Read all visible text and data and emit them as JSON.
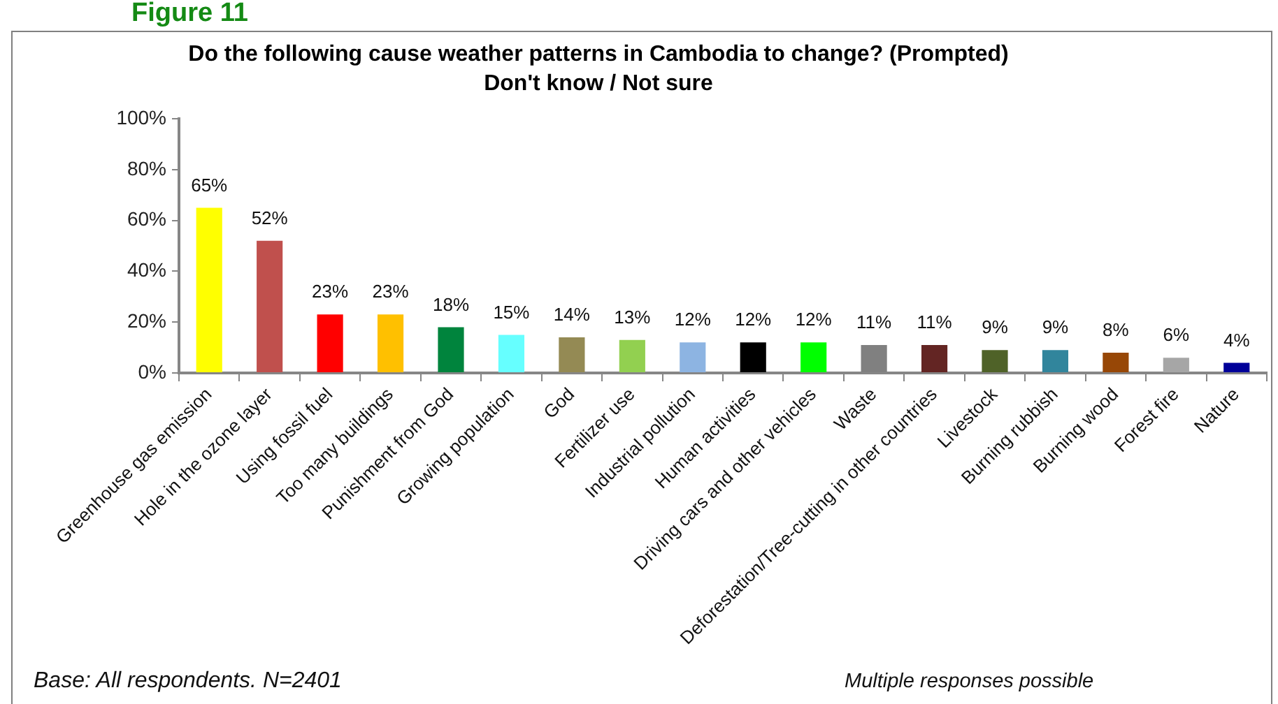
{
  "chart_data": {
    "type": "bar",
    "title": "Do the following cause weather patterns in Cambodia to change? (Prompted)",
    "subtitle": "Don't know / Not sure",
    "annotations": [
      "Figure 11",
      "Base: All respondents. N=2401",
      "Multiple responses possible"
    ],
    "categories": [
      "Greenhouse gas emission",
      "Hole in the ozone layer",
      "Using fossil fuel",
      "Too many buildings",
      "Punishment from God",
      "Growing population",
      "God",
      "Fertilizer use",
      "Industrial pollution",
      "Human activities",
      "Driving cars and other vehicles",
      "Waste",
      "Deforestation/Tree-cutting in other countries",
      "Livestock",
      "Burning rubbish",
      "Burning wood",
      "Forest fire",
      "Nature"
    ],
    "values": [
      65,
      52,
      23,
      23,
      18,
      15,
      14,
      13,
      12,
      12,
      12,
      11,
      11,
      9,
      9,
      8,
      6,
      4
    ],
    "value_labels": [
      "65%",
      "52%",
      "23%",
      "23%",
      "18%",
      "15%",
      "14%",
      "13%",
      "12%",
      "12%",
      "12%",
      "11%",
      "11%",
      "9%",
      "9%",
      "8%",
      "6%",
      "4%"
    ],
    "colors": [
      "#ffff00",
      "#c0504d",
      "#ff0000",
      "#ffc000",
      "#00843d",
      "#66ffff",
      "#948a54",
      "#92d050",
      "#8db4e2",
      "#000000",
      "#00ff00",
      "#808080",
      "#632523",
      "#4f6228",
      "#31859c",
      "#974706",
      "#a6a6a6",
      "#000099"
    ],
    "ylim": [
      0,
      100
    ],
    "yticks": [
      {
        "value": 0,
        "label": "0%"
      },
      {
        "value": 20,
        "label": "20%"
      },
      {
        "value": 40,
        "label": "40%"
      },
      {
        "value": 60,
        "label": "60%"
      },
      {
        "value": 80,
        "label": "80%"
      },
      {
        "value": 100,
        "label": "100%"
      }
    ]
  }
}
